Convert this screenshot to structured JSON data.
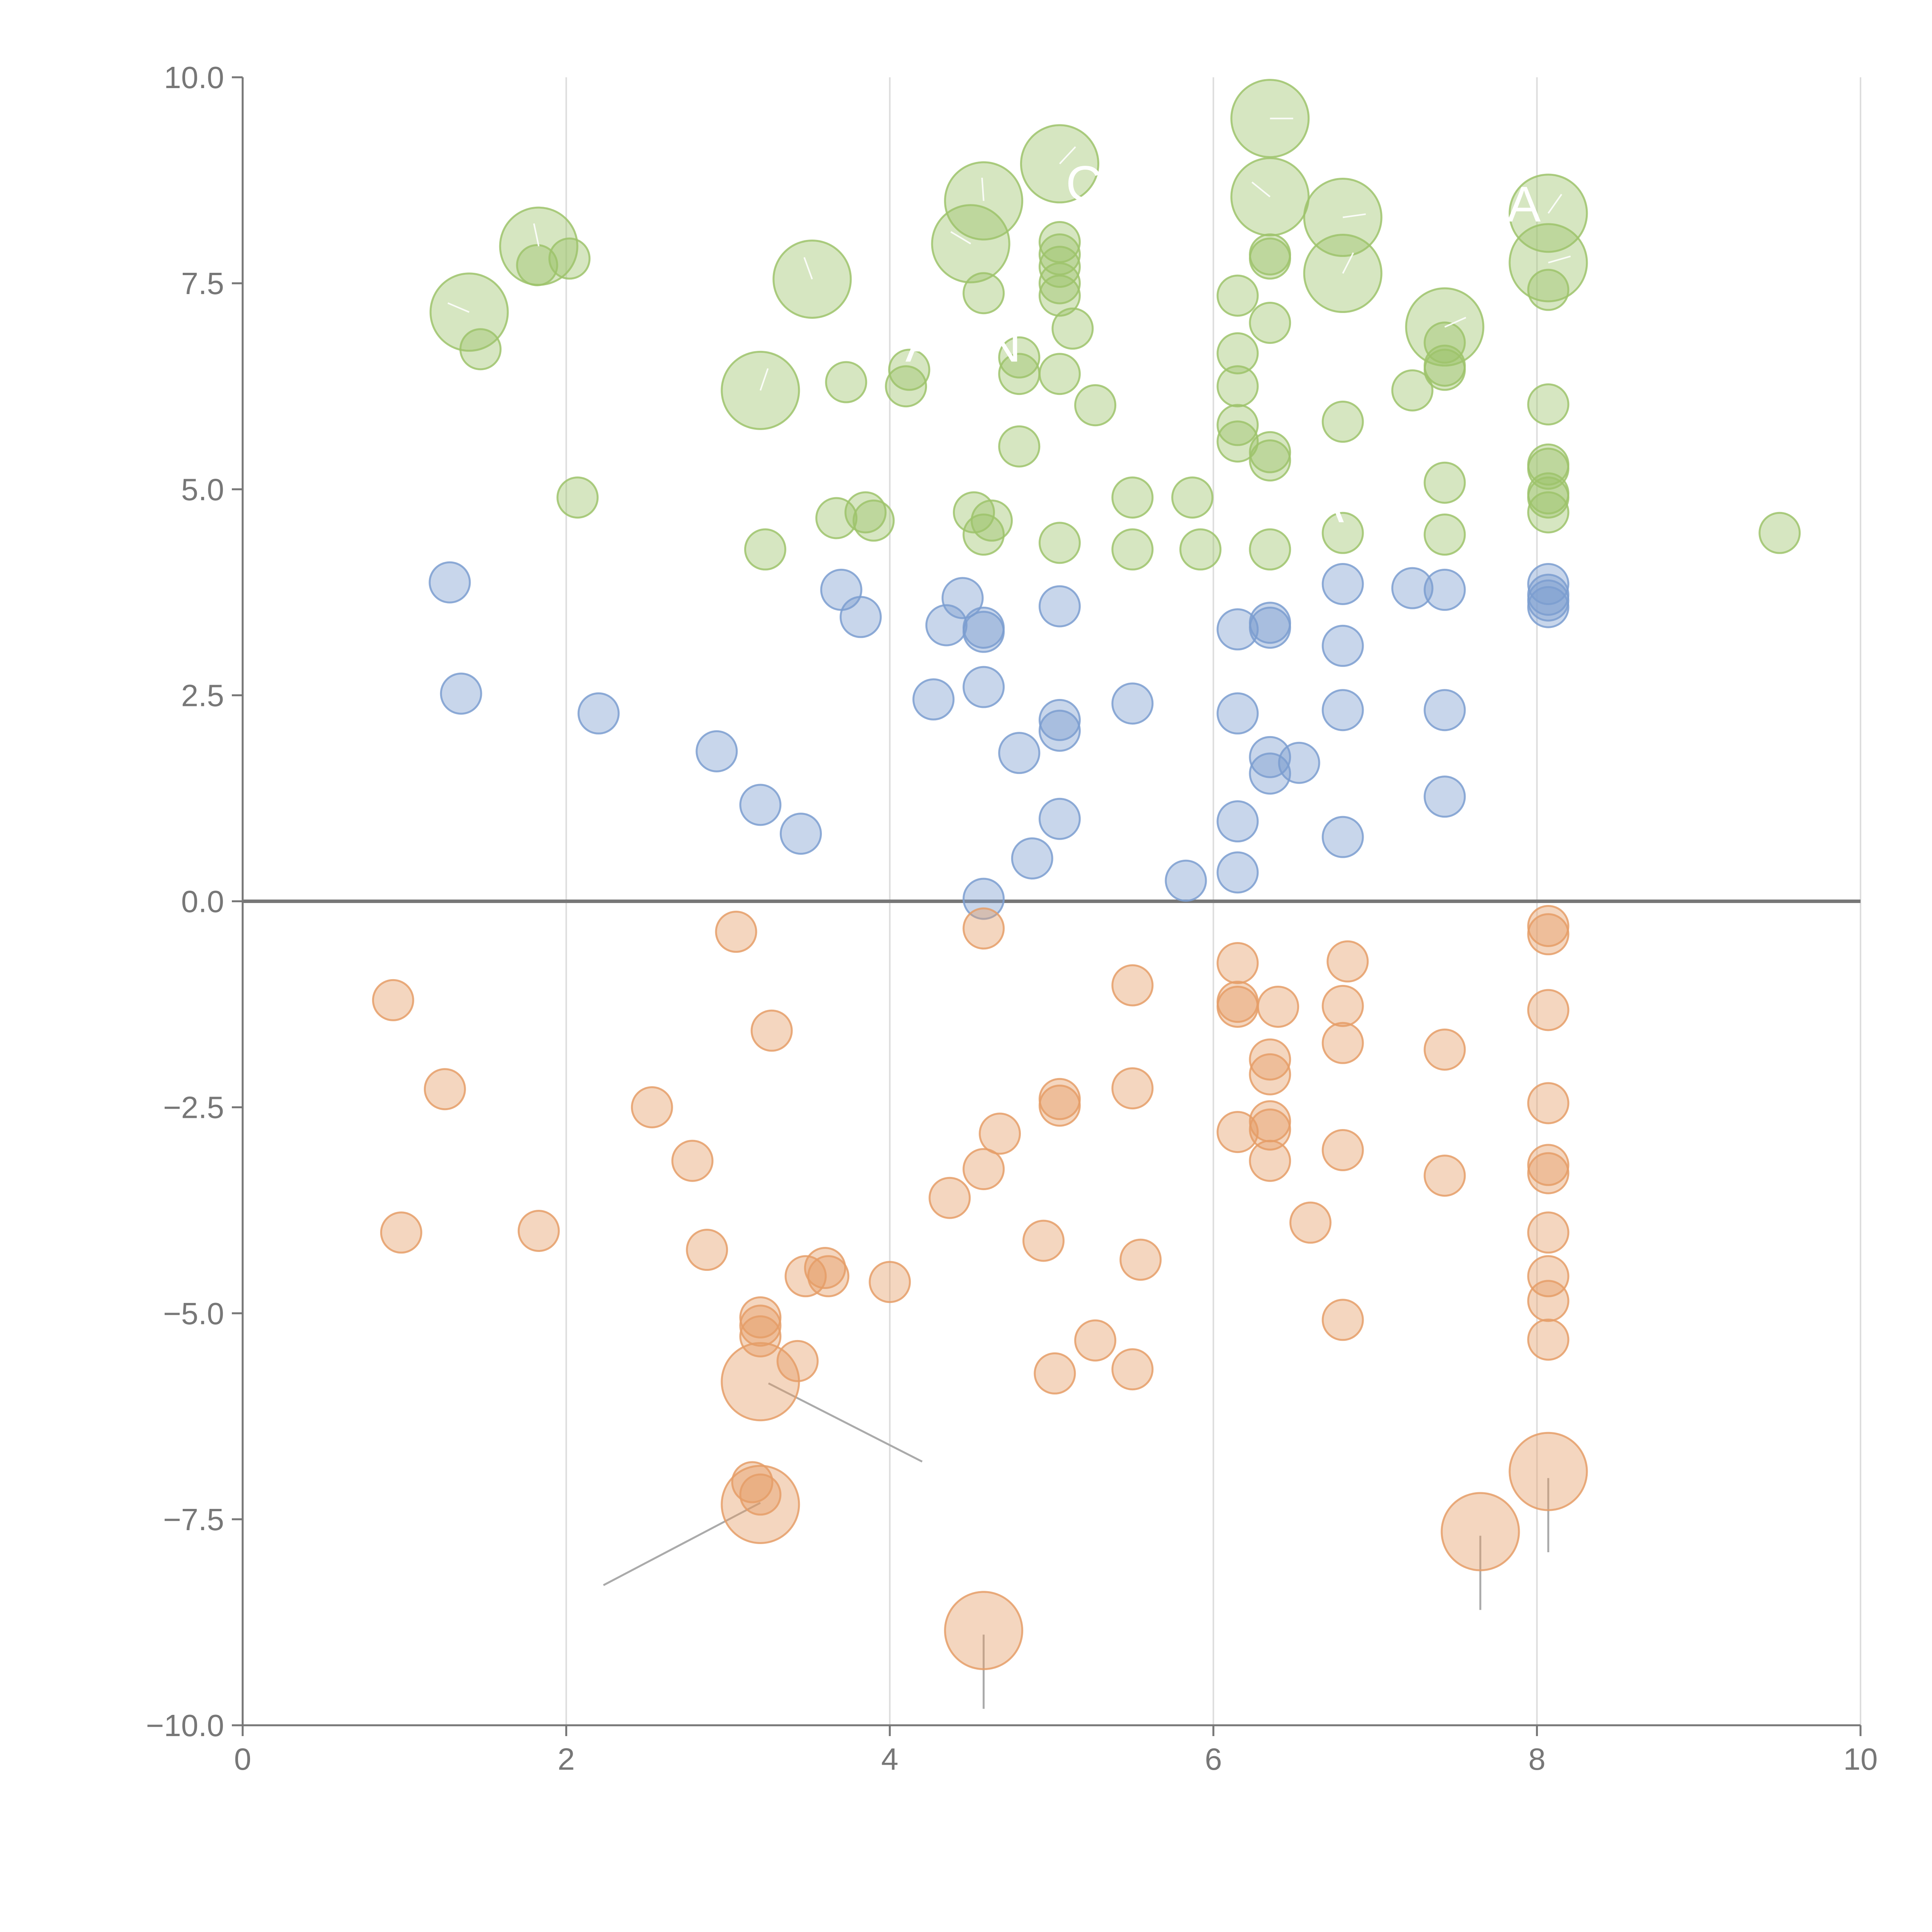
{
  "chart_data": {
    "type": "scatter",
    "title": "",
    "xlabel": "",
    "ylabel": "",
    "xlim": [
      0,
      10
    ],
    "ylim": [
      -10,
      10
    ],
    "grid": "vertical",
    "x_ticks": [
      0,
      2,
      4,
      6,
      8,
      10
    ],
    "y_ticks": [
      -10,
      -7.5,
      -5,
      -2.5,
      0,
      2.5,
      5,
      7.5,
      10
    ],
    "x_tick_labels": [
      "0",
      "2",
      "4",
      "6",
      "8",
      "10"
    ],
    "y_tick_labels": [
      "−10.0",
      "−7.5",
      "−5.0",
      "−2.5",
      "0.0",
      "2.5",
      "5.0",
      "7.5",
      "10.0"
    ],
    "series": [
      {
        "name": "green",
        "color": "#9dc36b",
        "points": [
          [
            6.35,
            9.5,
            3
          ],
          [
            5.05,
            8.95,
            3
          ],
          [
            4.58,
            8.5,
            3
          ],
          [
            6.35,
            8.55,
            3
          ],
          [
            6.8,
            8.3,
            3
          ],
          [
            8.07,
            8.35,
            3
          ],
          [
            1.83,
            7.95,
            3
          ],
          [
            4.5,
            7.98,
            3
          ],
          [
            8.07,
            7.75,
            3
          ],
          [
            6.8,
            7.62,
            3
          ],
          [
            3.52,
            7.55,
            3
          ],
          [
            1.4,
            7.15,
            3
          ],
          [
            7.43,
            6.97,
            3
          ],
          [
            3.2,
            6.2,
            3
          ],
          [
            1.82,
            7.72,
            1
          ],
          [
            2.02,
            7.8,
            1
          ],
          [
            1.47,
            6.7,
            1
          ],
          [
            5.05,
            8.0,
            1
          ],
          [
            5.05,
            7.85,
            1
          ],
          [
            5.05,
            7.7,
            1
          ],
          [
            5.05,
            7.5,
            1
          ],
          [
            5.05,
            7.35,
            1
          ],
          [
            6.35,
            7.85,
            1
          ],
          [
            6.35,
            7.8,
            1
          ],
          [
            4.58,
            7.38,
            1
          ],
          [
            6.15,
            7.35,
            1
          ],
          [
            8.07,
            7.42,
            1
          ],
          [
            5.13,
            6.95,
            1
          ],
          [
            6.35,
            7.02,
            1
          ],
          [
            6.15,
            6.65,
            1
          ],
          [
            7.43,
            6.78,
            1
          ],
          [
            7.43,
            6.5,
            1
          ],
          [
            7.43,
            6.45,
            1
          ],
          [
            4.8,
            6.6,
            1
          ],
          [
            4.8,
            6.4,
            1
          ],
          [
            5.05,
            6.4,
            1
          ],
          [
            4.12,
            6.45,
            1
          ],
          [
            4.1,
            6.25,
            1
          ],
          [
            3.73,
            6.3,
            1
          ],
          [
            6.15,
            6.25,
            1
          ],
          [
            7.23,
            6.2,
            1
          ],
          [
            5.27,
            6.02,
            1
          ],
          [
            8.07,
            6.03,
            1
          ],
          [
            6.15,
            5.78,
            1
          ],
          [
            6.8,
            5.82,
            1
          ],
          [
            6.15,
            5.58,
            1
          ],
          [
            4.8,
            5.52,
            1
          ],
          [
            6.35,
            5.45,
            1
          ],
          [
            6.35,
            5.35,
            1
          ],
          [
            8.07,
            5.3,
            1
          ],
          [
            8.07,
            5.25,
            1
          ],
          [
            7.43,
            5.08,
            1
          ],
          [
            8.07,
            4.95,
            1
          ],
          [
            8.07,
            4.9,
            1
          ],
          [
            2.07,
            4.9,
            1
          ],
          [
            5.5,
            4.9,
            1
          ],
          [
            5.87,
            4.9,
            1
          ],
          [
            8.07,
            4.72,
            1
          ],
          [
            4.52,
            4.72,
            1
          ],
          [
            3.85,
            4.72,
            1
          ],
          [
            3.67,
            4.65,
            1
          ],
          [
            3.9,
            4.62,
            1
          ],
          [
            4.63,
            4.62,
            1
          ],
          [
            9.5,
            4.47,
            1
          ],
          [
            4.58,
            4.45,
            1
          ],
          [
            6.8,
            4.47,
            1
          ],
          [
            7.43,
            4.45,
            1
          ],
          [
            5.05,
            4.35,
            1
          ],
          [
            5.5,
            4.27,
            1
          ],
          [
            5.92,
            4.27,
            1
          ],
          [
            3.23,
            4.27,
            1
          ],
          [
            6.35,
            4.27,
            1
          ]
        ]
      },
      {
        "name": "blue",
        "color": "#7b9ed0",
        "points": [
          [
            1.28,
            3.87,
            1
          ],
          [
            3.7,
            3.78,
            1
          ],
          [
            7.23,
            3.8,
            1
          ],
          [
            8.07,
            3.85,
            1
          ],
          [
            6.8,
            3.85,
            1
          ],
          [
            7.43,
            3.78,
            1
          ],
          [
            8.07,
            3.72,
            1
          ],
          [
            8.07,
            3.65,
            1
          ],
          [
            4.45,
            3.68,
            1
          ],
          [
            5.05,
            3.58,
            1
          ],
          [
            8.07,
            3.57,
            1
          ],
          [
            3.82,
            3.45,
            1
          ],
          [
            4.35,
            3.35,
            1
          ],
          [
            4.58,
            3.32,
            1
          ],
          [
            6.35,
            3.38,
            1
          ],
          [
            6.35,
            3.32,
            1
          ],
          [
            6.15,
            3.3,
            1
          ],
          [
            4.58,
            3.27,
            1
          ],
          [
            6.8,
            3.1,
            1
          ],
          [
            1.35,
            2.52,
            1
          ],
          [
            4.58,
            2.6,
            1
          ],
          [
            4.27,
            2.45,
            1
          ],
          [
            5.5,
            2.4,
            1
          ],
          [
            6.15,
            2.28,
            1
          ],
          [
            6.8,
            2.32,
            1
          ],
          [
            7.43,
            2.32,
            1
          ],
          [
            2.2,
            2.28,
            1
          ],
          [
            5.05,
            2.2,
            1
          ],
          [
            5.05,
            2.07,
            1
          ],
          [
            2.93,
            1.82,
            1
          ],
          [
            4.8,
            1.8,
            1
          ],
          [
            6.35,
            1.75,
            1
          ],
          [
            6.53,
            1.68,
            1
          ],
          [
            6.35,
            1.55,
            1
          ],
          [
            7.43,
            1.27,
            1
          ],
          [
            3.2,
            1.17,
            1
          ],
          [
            5.05,
            1.0,
            1
          ],
          [
            6.15,
            0.97,
            1
          ],
          [
            3.45,
            0.82,
            1
          ],
          [
            6.8,
            0.78,
            1
          ],
          [
            4.88,
            0.52,
            1
          ],
          [
            6.15,
            0.35,
            1
          ],
          [
            5.83,
            0.25,
            1
          ],
          [
            4.58,
            0.03,
            1
          ]
        ]
      },
      {
        "name": "orange",
        "color": "#e59e67",
        "points": [
          [
            3.05,
            -0.37,
            1
          ],
          [
            4.58,
            -0.33,
            1
          ],
          [
            8.07,
            -0.3,
            1
          ],
          [
            8.07,
            -0.4,
            1
          ],
          [
            6.15,
            -0.75,
            1
          ],
          [
            6.83,
            -0.73,
            1
          ],
          [
            5.5,
            -1.02,
            1
          ],
          [
            0.93,
            -1.2,
            1
          ],
          [
            6.15,
            -1.22,
            1
          ],
          [
            6.15,
            -1.28,
            1
          ],
          [
            6.4,
            -1.28,
            1
          ],
          [
            6.8,
            -1.27,
            1
          ],
          [
            8.07,
            -1.32,
            1
          ],
          [
            3.27,
            -1.57,
            1
          ],
          [
            6.8,
            -1.72,
            1
          ],
          [
            7.43,
            -1.8,
            1
          ],
          [
            6.35,
            -1.92,
            1
          ],
          [
            6.35,
            -2.1,
            1
          ],
          [
            1.25,
            -2.28,
            1
          ],
          [
            5.5,
            -2.27,
            1
          ],
          [
            5.05,
            -2.4,
            1
          ],
          [
            5.05,
            -2.48,
            1
          ],
          [
            2.53,
            -2.5,
            1
          ],
          [
            8.07,
            -2.45,
            1
          ],
          [
            6.35,
            -2.67,
            1
          ],
          [
            6.35,
            -2.77,
            1
          ],
          [
            4.68,
            -2.82,
            1
          ],
          [
            6.15,
            -2.8,
            1
          ],
          [
            6.8,
            -3.02,
            1
          ],
          [
            2.78,
            -3.15,
            1
          ],
          [
            6.35,
            -3.15,
            1
          ],
          [
            8.07,
            -3.2,
            1
          ],
          [
            8.07,
            -3.3,
            1
          ],
          [
            4.58,
            -3.25,
            1
          ],
          [
            7.43,
            -3.33,
            1
          ],
          [
            4.37,
            -3.6,
            1
          ],
          [
            6.6,
            -3.9,
            1
          ],
          [
            0.98,
            -4.02,
            1
          ],
          [
            1.83,
            -4.0,
            1
          ],
          [
            8.07,
            -4.02,
            1
          ],
          [
            4.95,
            -4.12,
            1
          ],
          [
            2.87,
            -4.23,
            1
          ],
          [
            5.55,
            -4.35,
            1
          ],
          [
            3.6,
            -4.45,
            1
          ],
          [
            3.48,
            -4.55,
            1
          ],
          [
            3.62,
            -4.55,
            1
          ],
          [
            8.07,
            -4.55,
            1
          ],
          [
            4.0,
            -4.62,
            1
          ],
          [
            8.07,
            -4.85,
            1
          ],
          [
            3.2,
            -5.05,
            1
          ],
          [
            3.2,
            -5.15,
            1
          ],
          [
            3.2,
            -5.28,
            1
          ],
          [
            6.8,
            -5.08,
            1
          ],
          [
            8.07,
            -5.32,
            1
          ],
          [
            5.27,
            -5.33,
            1
          ],
          [
            3.43,
            -5.58,
            1
          ],
          [
            5.5,
            -5.68,
            1
          ],
          [
            5.02,
            -5.73,
            1
          ],
          [
            3.15,
            -7.05,
            1
          ],
          [
            3.2,
            -7.2,
            1
          ],
          [
            3.2,
            -5.83,
            3
          ],
          [
            8.07,
            -6.92,
            3
          ],
          [
            3.2,
            -7.32,
            3
          ],
          [
            7.65,
            -7.65,
            3
          ],
          [
            4.58,
            -8.85,
            3
          ]
        ]
      }
    ],
    "leader_lines": [
      [
        [
          3.25,
          -5.85
        ],
        [
          4.2,
          -6.8
        ]
      ],
      [
        [
          3.2,
          -7.3
        ],
        [
          2.23,
          -8.3
        ]
      ],
      [
        [
          8.07,
          -7.0
        ],
        [
          8.07,
          -7.9
        ]
      ],
      [
        [
          7.65,
          -7.7
        ],
        [
          7.65,
          -8.6
        ]
      ],
      [
        [
          4.58,
          -8.9
        ],
        [
          4.58,
          -9.8
        ]
      ]
    ],
    "overlay_labels": [
      {
        "text": "A",
        "x": 7.92,
        "y": 8.25
      },
      {
        "text": "C",
        "x": 5.2,
        "y": 8.5
      },
      {
        "text": "N",
        "x": 4.7,
        "y": 6.55
      },
      {
        "text": "A",
        "x": 4.2,
        "y": 6.55
      },
      {
        "text": "EA",
        "x": 6.6,
        "y": 4.6
      }
    ]
  }
}
